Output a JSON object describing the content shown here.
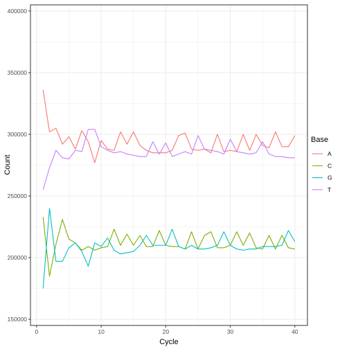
{
  "chart_data": {
    "type": "line",
    "xlabel": "Cycle",
    "ylabel": "Count",
    "xlim": [
      -0.95,
      41.95
    ],
    "ylim": [
      145000,
      405000
    ],
    "x_ticks": [
      0,
      10,
      20,
      30,
      40
    ],
    "y_ticks": [
      150000,
      200000,
      250000,
      300000,
      350000,
      400000
    ],
    "x_tick_labels": [
      "0",
      "10",
      "20",
      "30",
      "40"
    ],
    "y_tick_labels": [
      "150000",
      "200000",
      "250000",
      "300000",
      "350000",
      "400000"
    ],
    "grid": true,
    "legend": {
      "title": "Base",
      "position": "right"
    },
    "x": [
      1,
      2,
      3,
      4,
      5,
      6,
      7,
      8,
      9,
      10,
      11,
      12,
      13,
      14,
      15,
      16,
      17,
      18,
      19,
      20,
      21,
      22,
      23,
      24,
      25,
      26,
      27,
      28,
      29,
      30,
      31,
      32,
      33,
      34,
      35,
      36,
      37,
      38,
      39,
      40
    ],
    "series": [
      {
        "name": "A",
        "color": "#F8766D",
        "values": [
          336000,
          302000,
          305000,
          292000,
          298000,
          288000,
          303000,
          294000,
          277000,
          295000,
          288000,
          287000,
          302000,
          292000,
          302000,
          291000,
          287000,
          285000,
          285000,
          285000,
          287000,
          299000,
          301000,
          288000,
          287000,
          288000,
          285000,
          300000,
          286000,
          287000,
          286000,
          300000,
          287000,
          300000,
          291000,
          289000,
          302000,
          290000,
          290000,
          299000
        ]
      },
      {
        "name": "C",
        "color": "#7CAE00",
        "values": [
          233000,
          185000,
          211000,
          231000,
          215000,
          212000,
          206000,
          209000,
          206000,
          208000,
          209000,
          223000,
          210000,
          219000,
          210000,
          218000,
          209000,
          209000,
          222000,
          210000,
          209000,
          209000,
          207000,
          221000,
          207000,
          218000,
          221000,
          208000,
          208000,
          210000,
          221000,
          210000,
          220000,
          208000,
          207000,
          218000,
          207000,
          218000,
          208000,
          207000
        ]
      },
      {
        "name": "G",
        "color": "#00BFC4",
        "values": [
          175000,
          240000,
          197000,
          197000,
          208000,
          212000,
          205000,
          193000,
          212000,
          209000,
          216000,
          206000,
          203000,
          204000,
          205000,
          210000,
          218000,
          210000,
          210000,
          210000,
          223000,
          209000,
          207000,
          210000,
          207000,
          207000,
          208000,
          210000,
          221000,
          210000,
          207000,
          206000,
          207000,
          207000,
          209000,
          209000,
          209000,
          210000,
          222000,
          213000
        ]
      },
      {
        "name": "T",
        "color": "#C77CFF",
        "values": [
          255000,
          273000,
          287000,
          281000,
          280000,
          287000,
          286000,
          304000,
          304000,
          290000,
          287000,
          285000,
          286000,
          284000,
          283000,
          282000,
          282000,
          294000,
          284000,
          293000,
          282000,
          284000,
          286000,
          284000,
          299000,
          288000,
          287000,
          286000,
          284000,
          296000,
          286000,
          285000,
          284000,
          285000,
          294000,
          284000,
          282000,
          282000,
          281000,
          281000
        ]
      }
    ]
  }
}
